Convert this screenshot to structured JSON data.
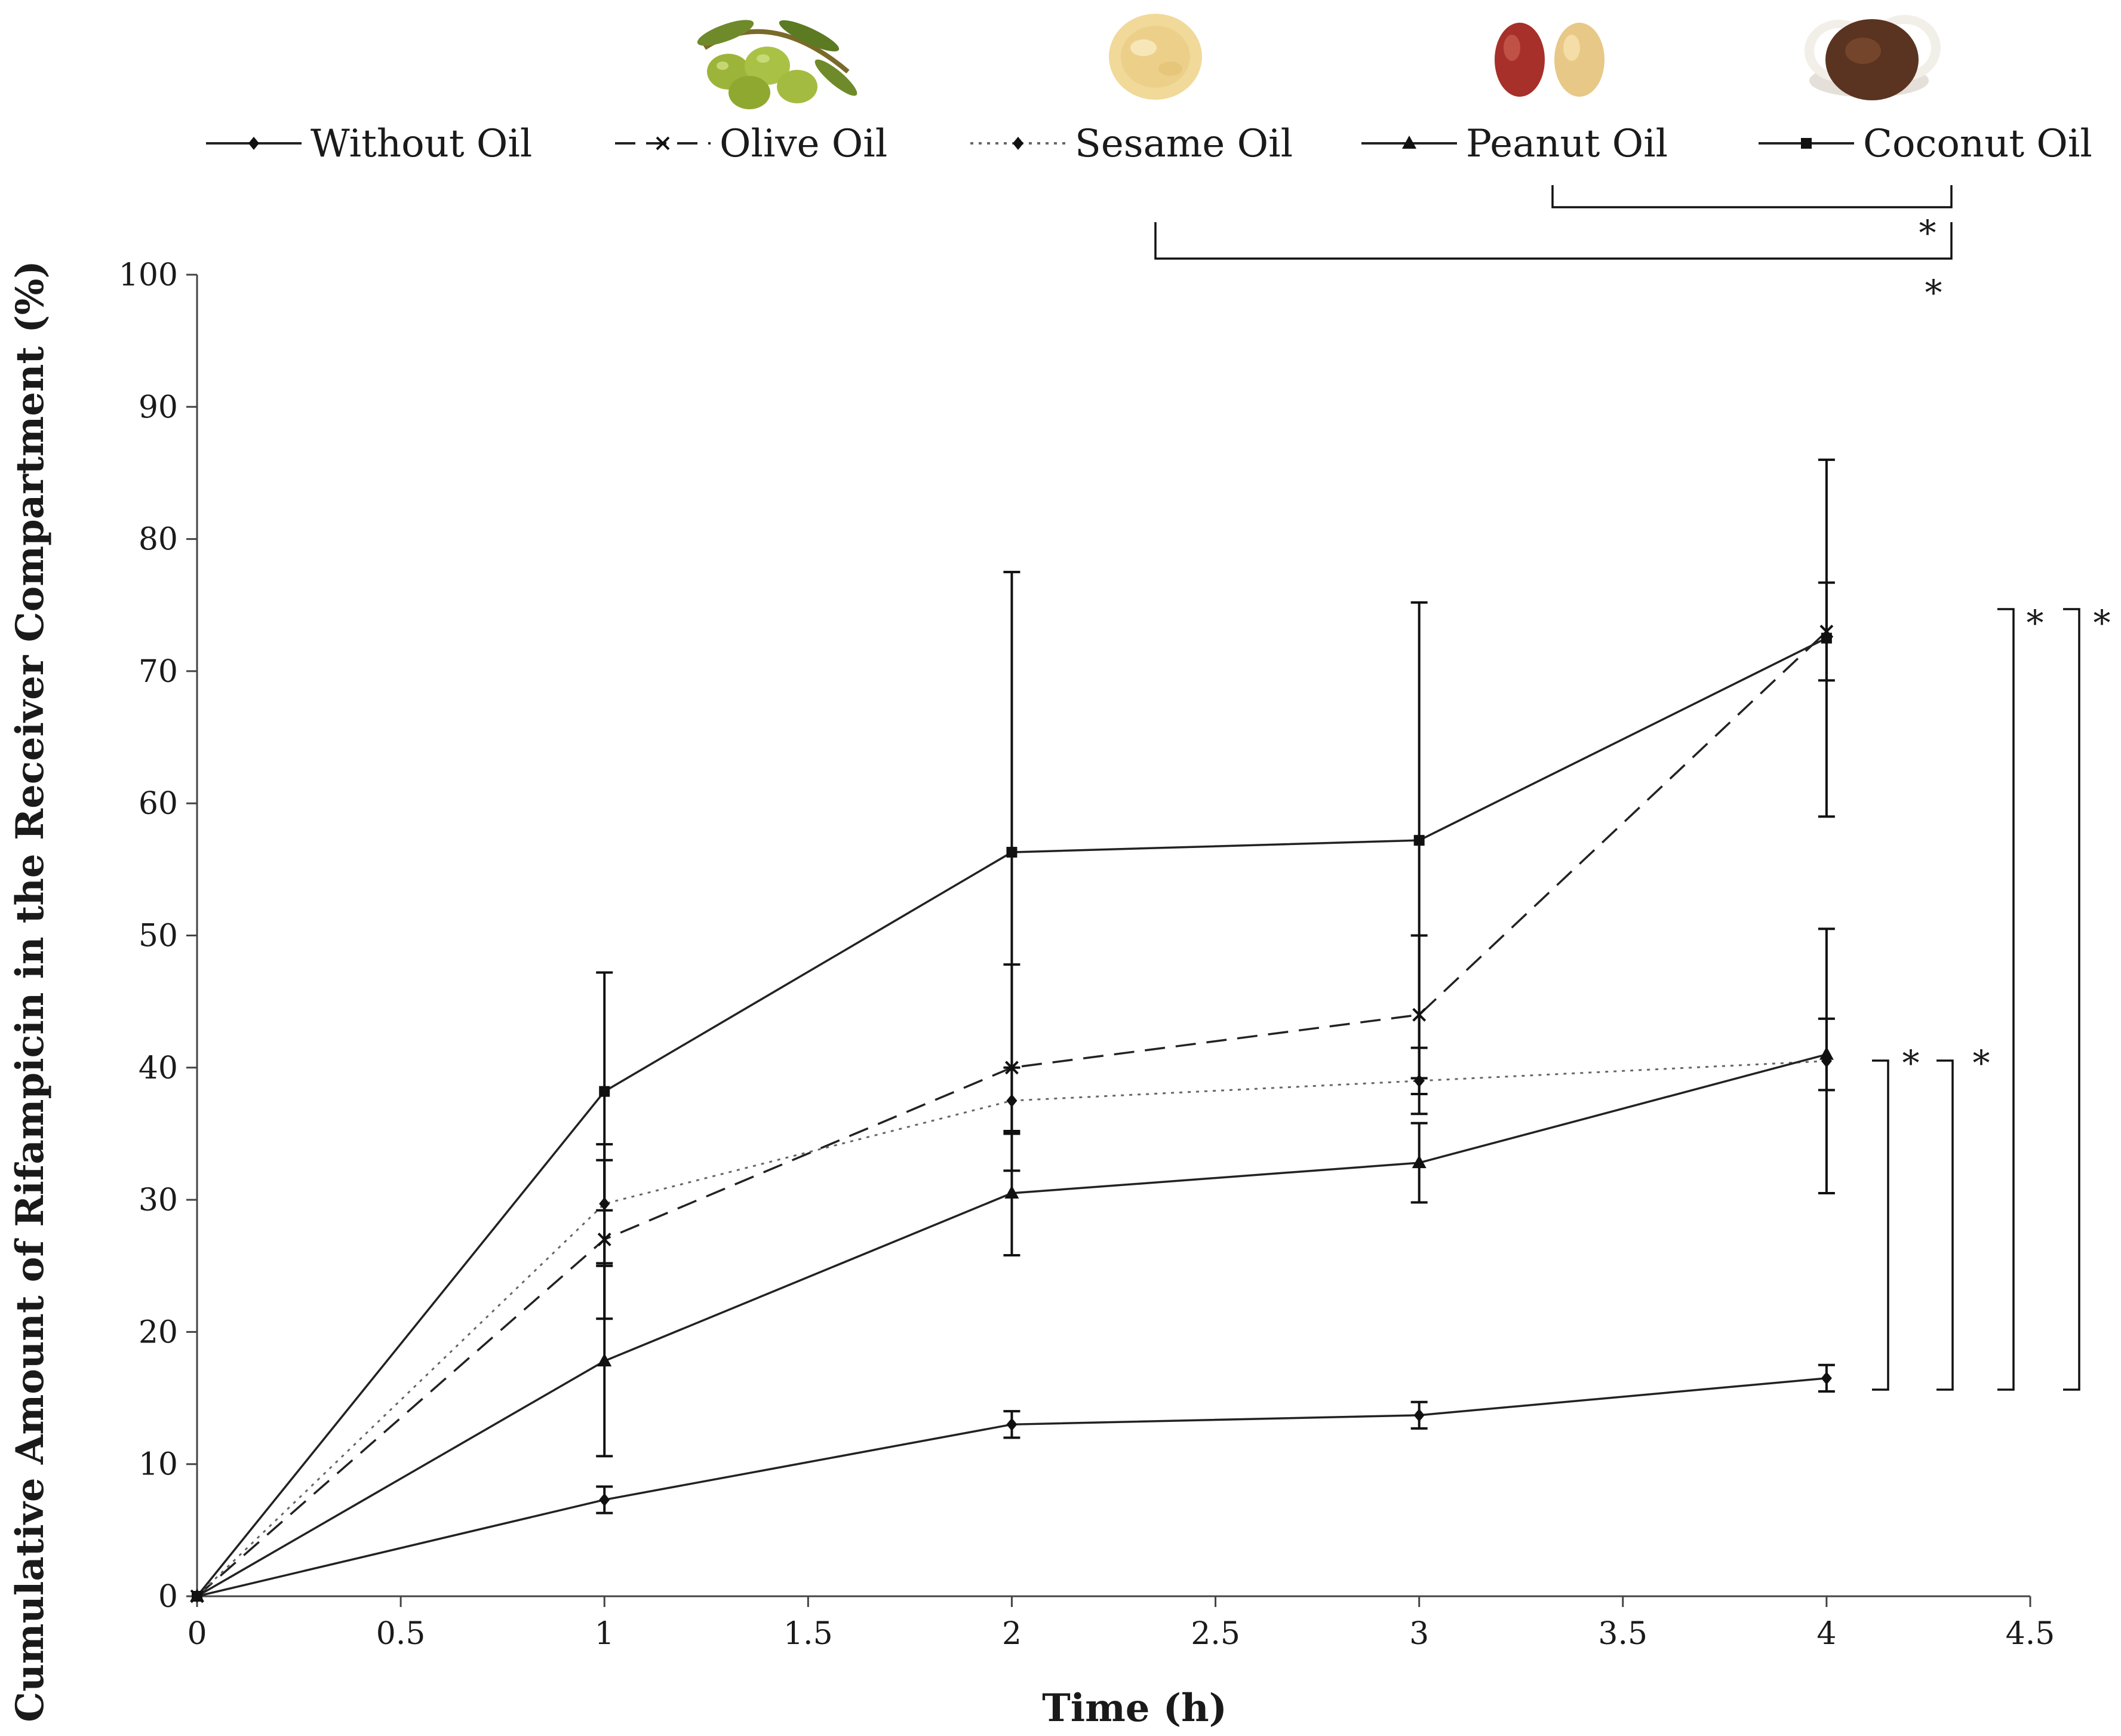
{
  "chart_data": {
    "type": "line",
    "xlabel": "Time (h)",
    "ylabel": "Cumulative Amount  of  Rifampicin in the Receiver Compartment (%)",
    "xlim": [
      0,
      4.5
    ],
    "ylim": [
      0,
      100
    ],
    "xticks": [
      "0",
      "0.5",
      "1",
      "1.5",
      "2",
      "2.5",
      "3",
      "3.5",
      "4",
      "4.5"
    ],
    "yticks": [
      "0",
      "10",
      "20",
      "30",
      "40",
      "50",
      "60",
      "70",
      "80",
      "90",
      "100"
    ],
    "legend_position": "top",
    "grid": false,
    "x": [
      0,
      1,
      2,
      3,
      4
    ],
    "series": [
      {
        "name": "Without Oil",
        "marker": "diamond",
        "dash": "solid",
        "values": [
          0,
          7.3,
          13.0,
          13.7,
          16.5
        ],
        "errors": [
          0.5,
          1.0,
          1.0,
          1.0,
          1.0
        ]
      },
      {
        "name": "Olive Oil",
        "marker": "x",
        "dash": "dashed",
        "values": [
          0,
          27.0,
          40.0,
          44.0,
          73.0
        ],
        "errors": [
          0.5,
          6.0,
          7.8,
          6.0,
          3.7
        ]
      },
      {
        "name": "Sesame Oil",
        "marker": "diamond",
        "dash": "dotted",
        "values": [
          0,
          29.7,
          37.5,
          39.0,
          40.5
        ],
        "errors": [
          0.5,
          4.5,
          2.5,
          2.5,
          10.0
        ]
      },
      {
        "name": "Peanut Oil",
        "marker": "triangle",
        "dash": "solid",
        "values": [
          0,
          17.8,
          30.5,
          32.8,
          41.0
        ],
        "errors": [
          0.5,
          7.2,
          4.7,
          3.0,
          2.7
        ]
      },
      {
        "name": "Coconut Oil",
        "marker": "square",
        "dash": "solid",
        "values": [
          0,
          38.2,
          56.3,
          57.2,
          72.5
        ],
        "errors": [
          0.5,
          9.0,
          21.2,
          18.0,
          13.5
        ]
      }
    ],
    "significance_marker": "*"
  },
  "legend_icons": [
    "olive-icon",
    "sesame-seeds-icon",
    "peanut-icon",
    "coconut-icon"
  ]
}
